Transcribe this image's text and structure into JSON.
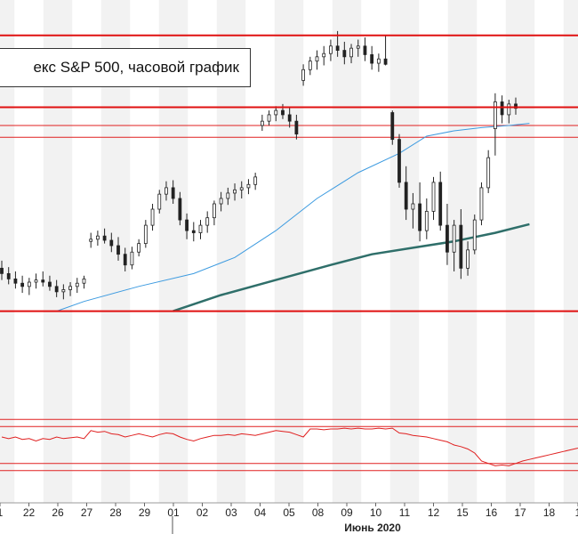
{
  "chart_data": {
    "type": "candlestick",
    "title": "екс S&P 500, часовой график",
    "month_label": "Июнь 2020",
    "x_ticks": [
      "1",
      "22",
      "26",
      "27",
      "28",
      "29",
      "01",
      "02",
      "03",
      "04",
      "05",
      "08",
      "09",
      "10",
      "11",
      "12",
      "15",
      "16",
      "17",
      "18",
      "1"
    ],
    "price_axis": {
      "ylim": [
        2900,
        3250
      ]
    },
    "oscillator_axis": {
      "ylim": [
        0,
        100
      ]
    },
    "horizontal_levels": {
      "thick": [
        3232,
        3165,
        2975
      ],
      "thin": [
        3148,
        3137
      ]
    },
    "oscillator_levels": [
      82,
      73,
      27,
      18
    ],
    "candles": [
      {
        "o": 3015,
        "h": 3022,
        "l": 3004,
        "c": 3010
      },
      {
        "o": 3010,
        "h": 3016,
        "l": 3000,
        "c": 3005
      },
      {
        "o": 3005,
        "h": 3012,
        "l": 2996,
        "c": 3001
      },
      {
        "o": 3001,
        "h": 3008,
        "l": 2992,
        "c": 2998
      },
      {
        "o": 2998,
        "h": 3006,
        "l": 2990,
        "c": 3002
      },
      {
        "o": 3002,
        "h": 3010,
        "l": 2996,
        "c": 3004
      },
      {
        "o": 3004,
        "h": 3012,
        "l": 2998,
        "c": 3002
      },
      {
        "o": 3002,
        "h": 3008,
        "l": 2994,
        "c": 2998
      },
      {
        "o": 2998,
        "h": 3004,
        "l": 2988,
        "c": 2993
      },
      {
        "o": 2993,
        "h": 3000,
        "l": 2986,
        "c": 2995
      },
      {
        "o": 2995,
        "h": 3002,
        "l": 2989,
        "c": 2998
      },
      {
        "o": 2998,
        "h": 3006,
        "l": 2992,
        "c": 3001
      },
      {
        "o": 3001,
        "h": 3008,
        "l": 2996,
        "c": 3005
      },
      {
        "o": 3040,
        "h": 3048,
        "l": 3034,
        "c": 3042
      },
      {
        "o": 3042,
        "h": 3050,
        "l": 3036,
        "c": 3045
      },
      {
        "o": 3045,
        "h": 3052,
        "l": 3038,
        "c": 3041
      },
      {
        "o": 3041,
        "h": 3048,
        "l": 3030,
        "c": 3036
      },
      {
        "o": 3036,
        "h": 3044,
        "l": 3022,
        "c": 3028
      },
      {
        "o": 3028,
        "h": 3034,
        "l": 3012,
        "c": 3018
      },
      {
        "o": 3018,
        "h": 3035,
        "l": 3014,
        "c": 3030
      },
      {
        "o": 3030,
        "h": 3042,
        "l": 3026,
        "c": 3038
      },
      {
        "o": 3038,
        "h": 3060,
        "l": 3034,
        "c": 3055
      },
      {
        "o": 3055,
        "h": 3075,
        "l": 3050,
        "c": 3070
      },
      {
        "o": 3070,
        "h": 3088,
        "l": 3066,
        "c": 3084
      },
      {
        "o": 3084,
        "h": 3096,
        "l": 3078,
        "c": 3090
      },
      {
        "o": 3090,
        "h": 3097,
        "l": 3075,
        "c": 3080
      },
      {
        "o": 3080,
        "h": 3086,
        "l": 3055,
        "c": 3060
      },
      {
        "o": 3060,
        "h": 3066,
        "l": 3042,
        "c": 3050
      },
      {
        "o": 3050,
        "h": 3058,
        "l": 3040,
        "c": 3048
      },
      {
        "o": 3048,
        "h": 3060,
        "l": 3042,
        "c": 3055
      },
      {
        "o": 3055,
        "h": 3068,
        "l": 3048,
        "c": 3062
      },
      {
        "o": 3062,
        "h": 3078,
        "l": 3055,
        "c": 3075
      },
      {
        "o": 3075,
        "h": 3086,
        "l": 3068,
        "c": 3080
      },
      {
        "o": 3080,
        "h": 3090,
        "l": 3074,
        "c": 3085
      },
      {
        "o": 3085,
        "h": 3094,
        "l": 3078,
        "c": 3088
      },
      {
        "o": 3088,
        "h": 3096,
        "l": 3080,
        "c": 3090
      },
      {
        "o": 3090,
        "h": 3098,
        "l": 3084,
        "c": 3093
      },
      {
        "o": 3093,
        "h": 3104,
        "l": 3088,
        "c": 3100
      },
      {
        "o": 3148,
        "h": 3158,
        "l": 3143,
        "c": 3152
      },
      {
        "o": 3152,
        "h": 3162,
        "l": 3148,
        "c": 3158
      },
      {
        "o": 3158,
        "h": 3166,
        "l": 3152,
        "c": 3162
      },
      {
        "o": 3162,
        "h": 3168,
        "l": 3154,
        "c": 3158
      },
      {
        "o": 3158,
        "h": 3165,
        "l": 3146,
        "c": 3152
      },
      {
        "o": 3152,
        "h": 3158,
        "l": 3135,
        "c": 3140
      },
      {
        "o": 3190,
        "h": 3205,
        "l": 3185,
        "c": 3200
      },
      {
        "o": 3200,
        "h": 3212,
        "l": 3195,
        "c": 3208
      },
      {
        "o": 3208,
        "h": 3218,
        "l": 3200,
        "c": 3212
      },
      {
        "o": 3212,
        "h": 3222,
        "l": 3204,
        "c": 3215
      },
      {
        "o": 3215,
        "h": 3228,
        "l": 3208,
        "c": 3222
      },
      {
        "o": 3222,
        "h": 3236,
        "l": 3212,
        "c": 3218
      },
      {
        "o": 3218,
        "h": 3226,
        "l": 3205,
        "c": 3212
      },
      {
        "o": 3212,
        "h": 3224,
        "l": 3206,
        "c": 3220
      },
      {
        "o": 3220,
        "h": 3228,
        "l": 3212,
        "c": 3222
      },
      {
        "o": 3222,
        "h": 3230,
        "l": 3208,
        "c": 3214
      },
      {
        "o": 3214,
        "h": 3222,
        "l": 3200,
        "c": 3206
      },
      {
        "o": 3206,
        "h": 3215,
        "l": 3198,
        "c": 3210
      },
      {
        "o": 3210,
        "h": 3232,
        "l": 3204,
        "c": 3205
      },
      {
        "o": 3160,
        "h": 3162,
        "l": 3130,
        "c": 3135
      },
      {
        "o": 3135,
        "h": 3140,
        "l": 3090,
        "c": 3095
      },
      {
        "o": 3095,
        "h": 3110,
        "l": 3060,
        "c": 3070
      },
      {
        "o": 3070,
        "h": 3085,
        "l": 3052,
        "c": 3075
      },
      {
        "o": 3075,
        "h": 3095,
        "l": 3040,
        "c": 3050
      },
      {
        "o": 3050,
        "h": 3080,
        "l": 3042,
        "c": 3068
      },
      {
        "o": 3068,
        "h": 3100,
        "l": 3060,
        "c": 3095
      },
      {
        "o": 3095,
        "h": 3105,
        "l": 3050,
        "c": 3055
      },
      {
        "o": 3055,
        "h": 3075,
        "l": 3018,
        "c": 3030
      },
      {
        "o": 3030,
        "h": 3060,
        "l": 3012,
        "c": 3055
      },
      {
        "o": 3055,
        "h": 3070,
        "l": 3005,
        "c": 3015
      },
      {
        "o": 3015,
        "h": 3040,
        "l": 3008,
        "c": 3032
      },
      {
        "o": 3032,
        "h": 3065,
        "l": 3028,
        "c": 3060
      },
      {
        "o": 3060,
        "h": 3095,
        "l": 3055,
        "c": 3090
      },
      {
        "o": 3090,
        "h": 3125,
        "l": 3085,
        "c": 3118
      },
      {
        "o": 3145,
        "h": 3178,
        "l": 3120,
        "c": 3170
      },
      {
        "o": 3170,
        "h": 3176,
        "l": 3150,
        "c": 3158
      },
      {
        "o": 3158,
        "h": 3172,
        "l": 3150,
        "c": 3168
      },
      {
        "o": 3168,
        "h": 3174,
        "l": 3158,
        "c": 3164
      }
    ],
    "ma_short": [
      {
        "i": 8,
        "v": 2975
      },
      {
        "i": 12,
        "v": 2984
      },
      {
        "i": 20,
        "v": 2998
      },
      {
        "i": 28,
        "v": 3010
      },
      {
        "i": 34,
        "v": 3025
      },
      {
        "i": 40,
        "v": 3050
      },
      {
        "i": 46,
        "v": 3080
      },
      {
        "i": 52,
        "v": 3104
      },
      {
        "i": 58,
        "v": 3122
      },
      {
        "i": 62,
        "v": 3138
      },
      {
        "i": 66,
        "v": 3143
      },
      {
        "i": 70,
        "v": 3146
      },
      {
        "i": 74,
        "v": 3148
      },
      {
        "i": 77,
        "v": 3150
      }
    ],
    "ma_long": [
      {
        "i": 25,
        "v": 2975
      },
      {
        "i": 32,
        "v": 2990
      },
      {
        "i": 40,
        "v": 3004
      },
      {
        "i": 48,
        "v": 3018
      },
      {
        "i": 54,
        "v": 3028
      },
      {
        "i": 60,
        "v": 3034
      },
      {
        "i": 66,
        "v": 3040
      },
      {
        "i": 72,
        "v": 3048
      },
      {
        "i": 77,
        "v": 3056
      }
    ],
    "oscillator": [
      60,
      58,
      60,
      57,
      58,
      55,
      58,
      57,
      60,
      58,
      59,
      60,
      58,
      68,
      66,
      67,
      64,
      63,
      60,
      62,
      64,
      62,
      60,
      63,
      65,
      64,
      60,
      57,
      55,
      58,
      60,
      62,
      62,
      63,
      62,
      64,
      63,
      62,
      64,
      66,
      68,
      67,
      66,
      63,
      60,
      70,
      70,
      69,
      70,
      70,
      71,
      70,
      71,
      70,
      70,
      71,
      70,
      71,
      65,
      64,
      62,
      61,
      60,
      58,
      56,
      54,
      50,
      48,
      45,
      40,
      30,
      27,
      24,
      25,
      24,
      27,
      30,
      32,
      34,
      36,
      38,
      40,
      42,
      44,
      46,
      48,
      50,
      52,
      55,
      56,
      58,
      60,
      62,
      60,
      61,
      63,
      62,
      64,
      64
    ]
  }
}
